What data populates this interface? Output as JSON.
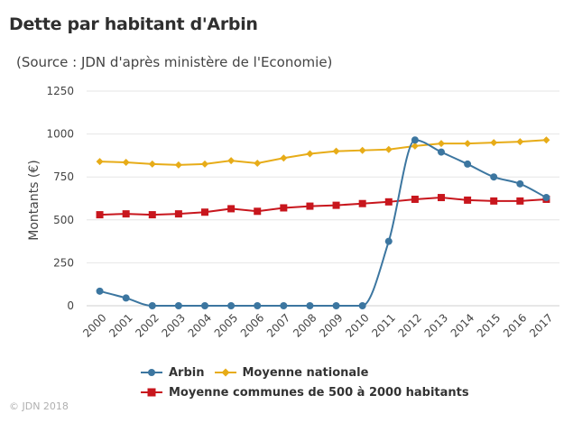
{
  "title": "Dette par habitant d'Arbin",
  "subtitle": "(Source : JDN d'après ministère de l'Economie)",
  "credit": "© JDN 2018",
  "chart_data": {
    "type": "line",
    "ylabel": "Montants (€)",
    "xlabel": "",
    "ylim": [
      0,
      1250
    ],
    "yticks": [
      0,
      250,
      500,
      750,
      1000,
      1250
    ],
    "grid": true,
    "legend_position": "bottom",
    "categories": [
      "2000",
      "2001",
      "2002",
      "2003",
      "2004",
      "2005",
      "2006",
      "2007",
      "2008",
      "2009",
      "2010",
      "2011",
      "2012",
      "2013",
      "2014",
      "2015",
      "2016",
      "2017"
    ],
    "series": [
      {
        "name": "Arbin",
        "color": "#3c76a0",
        "marker": "circle",
        "smooth": true,
        "values": [
          85,
          45,
          0,
          0,
          0,
          0,
          0,
          0,
          0,
          0,
          0,
          375,
          965,
          895,
          825,
          750,
          710,
          630
        ]
      },
      {
        "name": "Moyenne nationale",
        "color": "#e7ac18",
        "marker": "diamond",
        "smooth": false,
        "values": [
          840,
          835,
          825,
          820,
          825,
          845,
          830,
          860,
          885,
          900,
          905,
          910,
          930,
          945,
          945,
          950,
          955,
          965
        ]
      },
      {
        "name": "Moyenne communes de 500 à 2000 habitants",
        "color": "#c8161d",
        "marker": "square",
        "smooth": false,
        "values": [
          530,
          535,
          530,
          535,
          545,
          565,
          550,
          570,
          580,
          585,
          595,
          605,
          620,
          630,
          615,
          610,
          610,
          620
        ]
      }
    ]
  }
}
